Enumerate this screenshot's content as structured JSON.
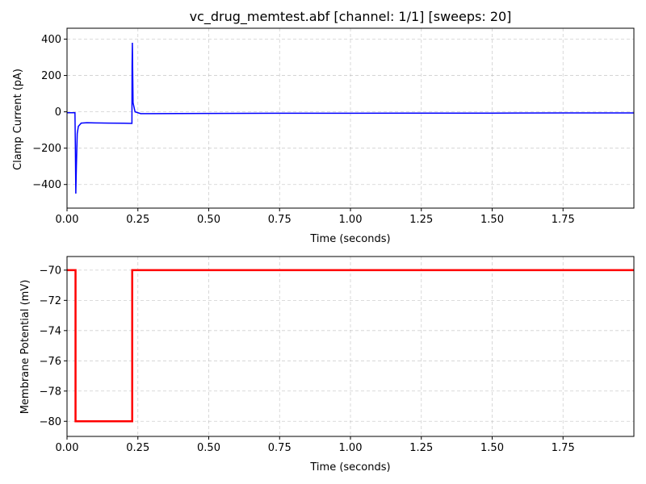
{
  "chart_data": [
    {
      "type": "line",
      "title": "vc_drug_memtest.abf [channel: 1/1] [sweeps: 20]",
      "xlabel": "Time (seconds)",
      "ylabel": "Clamp Current (pA)",
      "xlim": [
        0,
        2.0
      ],
      "ylim": [
        -530,
        460
      ],
      "xticks": [
        0.0,
        0.25,
        0.5,
        0.75,
        1.0,
        1.25,
        1.5,
        1.75
      ],
      "xtick_labels": [
        "0.00",
        "0.25",
        "0.50",
        "0.75",
        "1.00",
        "1.25",
        "1.50",
        "1.75"
      ],
      "yticks": [
        400,
        200,
        0,
        -200,
        -400
      ],
      "ytick_labels": [
        "400",
        "200",
        "0",
        "−200",
        "−400"
      ],
      "grid": true,
      "color": "#0000ff",
      "series": [
        {
          "x": [
            0.0,
            0.028,
            0.0295,
            0.031,
            0.033,
            0.036,
            0.04,
            0.05,
            0.07,
            0.1,
            0.15,
            0.2,
            0.229,
            0.2295,
            0.2305,
            0.233,
            0.24,
            0.26,
            0.3,
            0.5,
            0.75,
            1.0,
            1.25,
            1.5,
            1.75,
            2.0
          ],
          "y": [
            -5,
            -5,
            -200,
            -450,
            -300,
            -120,
            -80,
            -62,
            -60,
            -61,
            -62,
            -63,
            -64,
            250,
            380,
            50,
            0,
            -10,
            -10,
            -9,
            -8,
            -8,
            -7,
            -7,
            -6,
            -6
          ]
        }
      ]
    },
    {
      "type": "line",
      "xlabel": "Time (seconds)",
      "ylabel": "Membrane Potential (mV)",
      "xlim": [
        0,
        2.0
      ],
      "ylim": [
        -81.0,
        -69.1
      ],
      "xticks": [
        0.0,
        0.25,
        0.5,
        0.75,
        1.0,
        1.25,
        1.5,
        1.75
      ],
      "xtick_labels": [
        "0.00",
        "0.25",
        "0.50",
        "0.75",
        "1.00",
        "1.25",
        "1.50",
        "1.75"
      ],
      "yticks": [
        -70,
        -72,
        -74,
        -76,
        -78,
        -80
      ],
      "ytick_labels": [
        "−70",
        "−72",
        "−74",
        "−76",
        "−78",
        "−80"
      ],
      "grid": true,
      "color": "#ff0000",
      "series": [
        {
          "x": [
            0.0,
            0.03,
            0.03,
            0.23,
            0.23,
            2.0
          ],
          "y": [
            -70,
            -70,
            -80,
            -80,
            -70,
            -70
          ]
        }
      ]
    }
  ]
}
